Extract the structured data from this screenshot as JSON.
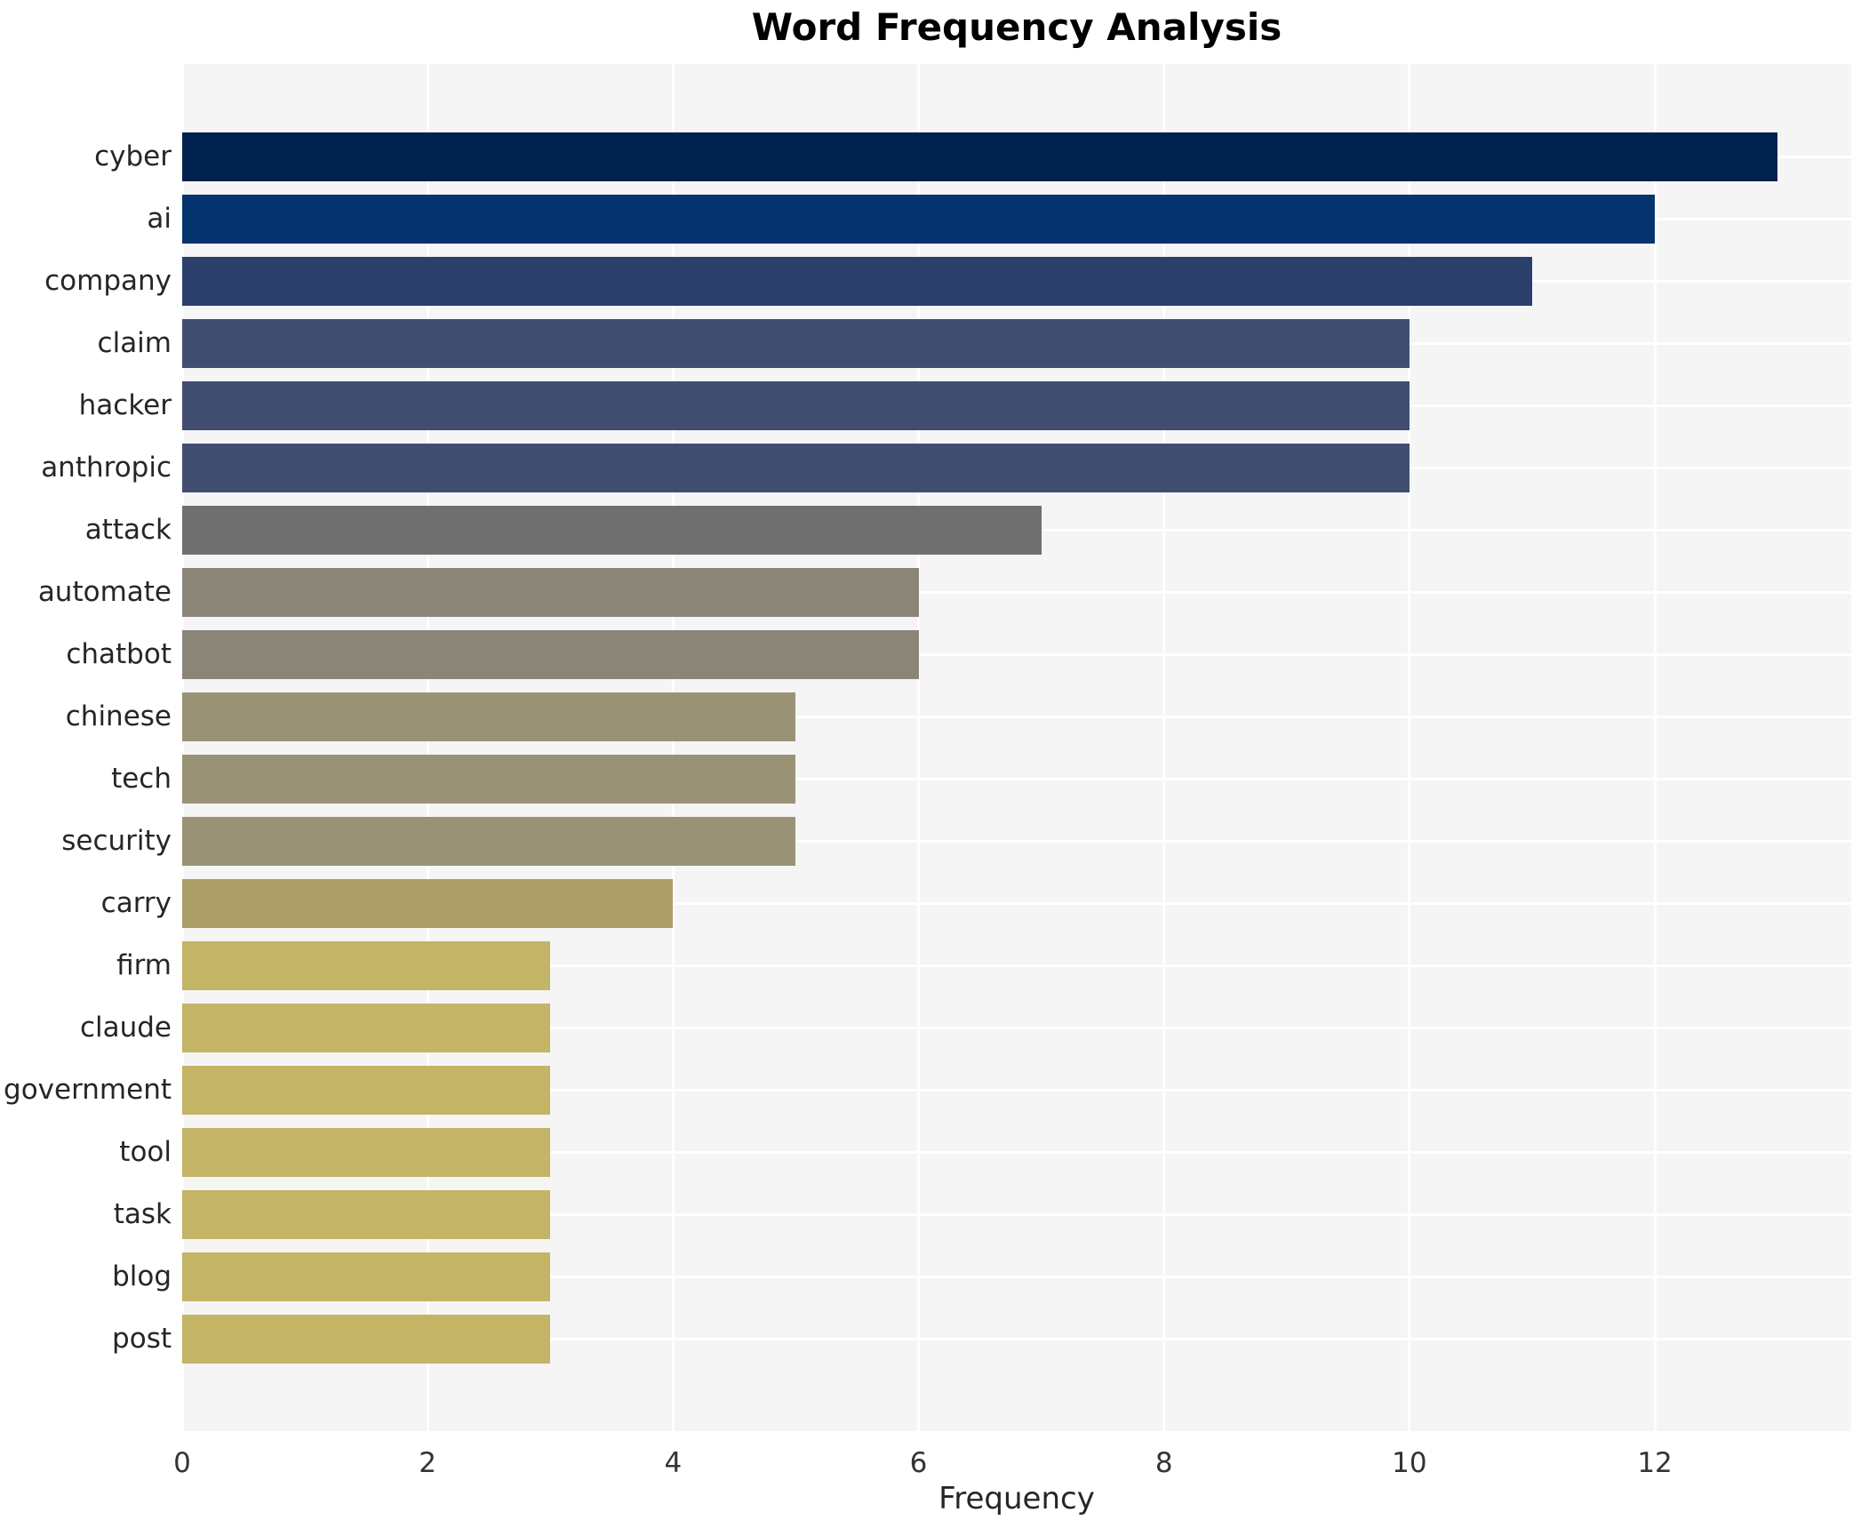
{
  "chart_data": {
    "type": "bar",
    "orientation": "horizontal",
    "title": "Word Frequency Analysis",
    "xlabel": "Frequency",
    "ylabel": "",
    "categories": [
      "cyber",
      "ai",
      "company",
      "claim",
      "hacker",
      "anthropic",
      "attack",
      "automate",
      "chatbot",
      "chinese",
      "tech",
      "security",
      "carry",
      "firm",
      "claude",
      "government",
      "tool",
      "task",
      "blog",
      "post"
    ],
    "values": [
      13,
      12,
      11,
      10,
      10,
      10,
      7,
      6,
      6,
      5,
      5,
      5,
      4,
      3,
      3,
      3,
      3,
      3,
      3,
      3
    ],
    "bar_colors": [
      "#00224e",
      "#04336e",
      "#2a3f6a",
      "#414e72",
      "#414e72",
      "#414e72",
      "#6f6f6f",
      "#8b8578",
      "#8b8578",
      "#9a9275",
      "#9a9275",
      "#9a9275",
      "#ab9e68",
      "#c3b466",
      "#c3b466",
      "#c3b466",
      "#c3b466",
      "#c3b466",
      "#c3b466",
      "#c3b466"
    ],
    "xticks": [
      0,
      2,
      4,
      6,
      8,
      10,
      12
    ],
    "xlim": [
      0,
      13.6
    ],
    "grid": true,
    "grid_color": "#ffffff",
    "plot_background": "#f5f5f6",
    "figure_background": "#ffffff",
    "text_color": "#262626",
    "legend": false
  }
}
